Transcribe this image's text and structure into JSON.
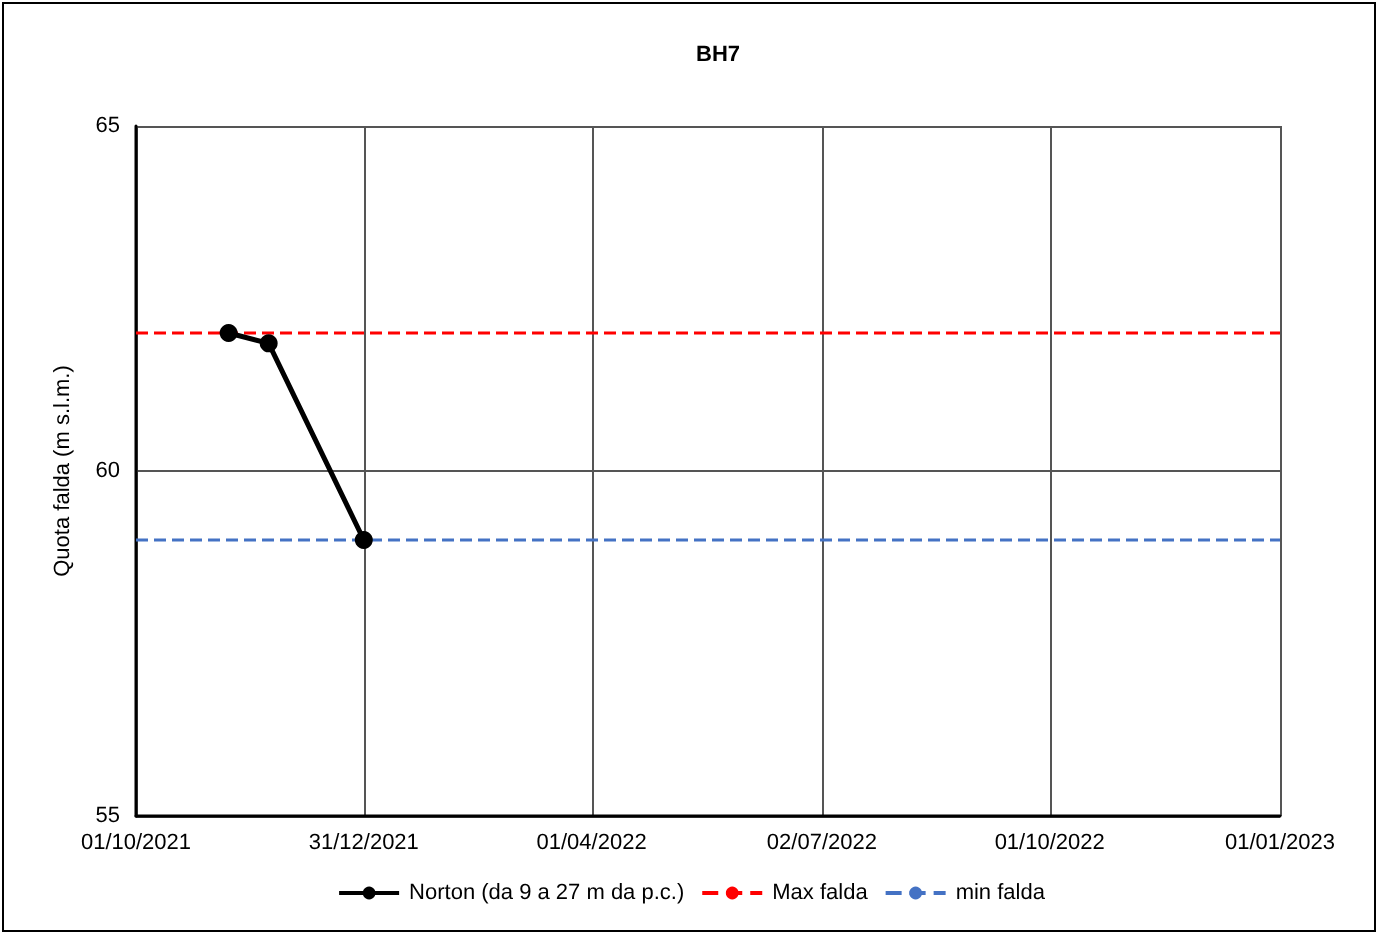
{
  "chart_data": {
    "type": "line",
    "title": "BH7",
    "ylabel": "Quota falda (m s.l.m.)",
    "xlim": [
      "2021-10-01",
      "2023-01-01"
    ],
    "xticks": [
      {
        "value": "2021-10-01",
        "label": "01/10/2021"
      },
      {
        "value": "2021-12-31",
        "label": "31/12/2021"
      },
      {
        "value": "2022-04-01",
        "label": "01/04/2022"
      },
      {
        "value": "2022-07-02",
        "label": "02/07/2022"
      },
      {
        "value": "2022-10-01",
        "label": "01/10/2022"
      },
      {
        "value": "2023-01-01",
        "label": "01/01/2023"
      }
    ],
    "ylim": [
      55,
      65
    ],
    "yticks": [
      55,
      60,
      65
    ],
    "series": [
      {
        "name": "Norton (da 9 a 27 m da p.c.)",
        "color": "#000000",
        "x": [
          "2021-11-07",
          "2021-11-23",
          "2021-12-31"
        ],
        "values": [
          62.0,
          61.85,
          59.0
        ]
      }
    ],
    "ref_lines": [
      {
        "axis": "y",
        "value": 62,
        "label": "Max falda",
        "color": "#ff0000",
        "line_style": "dashed"
      },
      {
        "axis": "y",
        "value": 59,
        "label": "min falda",
        "color": "#4472c4",
        "line_style": "dashed"
      }
    ],
    "marker": "circle",
    "line_style": "solid",
    "grid": true,
    "legend": "bottom"
  }
}
